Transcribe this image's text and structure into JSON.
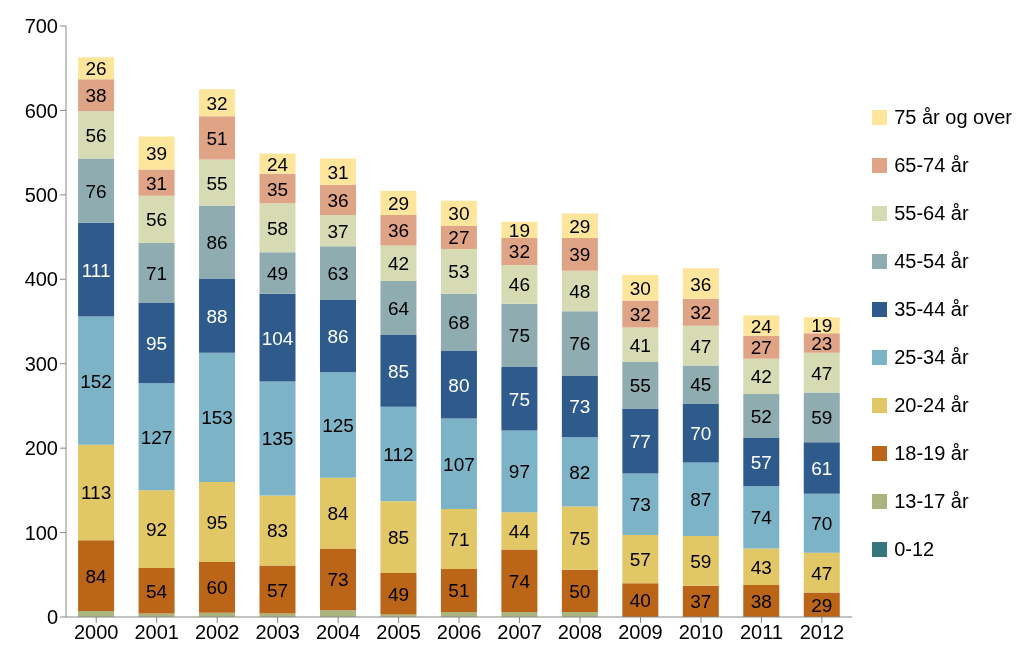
{
  "chart_data": {
    "type": "bar",
    "stacked": true,
    "categories": [
      "2000",
      "2001",
      "2002",
      "2003",
      "2004",
      "2005",
      "2006",
      "2007",
      "2008",
      "2009",
      "2010",
      "2011",
      "2012"
    ],
    "ylim": [
      0,
      700
    ],
    "yticks": [
      0,
      100,
      200,
      300,
      400,
      500,
      600,
      700
    ],
    "grid": false,
    "legend": "right",
    "series": [
      {
        "name": "0-12",
        "color": "#37767b",
        "values": [
          0,
          0,
          0,
          0,
          0,
          0,
          0,
          0,
          0,
          0,
          0,
          0,
          0
        ],
        "value_labels": [
          null,
          null,
          null,
          null,
          null,
          null,
          null,
          null,
          null,
          null,
          null,
          null,
          null
        ]
      },
      {
        "name": "13-17 år",
        "color": "#abb580",
        "values": [
          7,
          4,
          5,
          4,
          8,
          3,
          6,
          6,
          6,
          null,
          null,
          null,
          null
        ],
        "value_labels": [
          null,
          null,
          null,
          null,
          null,
          null,
          null,
          null,
          null,
          null,
          null,
          null,
          null
        ]
      },
      {
        "name": "18-19 år",
        "color": "#bb6518",
        "values": [
          84,
          54,
          60,
          57,
          73,
          49,
          51,
          74,
          50,
          40,
          37,
          38,
          29
        ],
        "value_labels": [
          "84",
          "54",
          "60",
          "57",
          "73",
          "49",
          "51",
          "74",
          "50",
          "40",
          "37",
          "38",
          "29"
        ]
      },
      {
        "name": "20-24 år",
        "color": "#e2c766",
        "values": [
          113,
          92,
          95,
          83,
          84,
          85,
          71,
          44,
          75,
          57,
          59,
          43,
          47
        ],
        "value_labels": [
          "113",
          "92",
          "95",
          "83",
          "84",
          "85",
          "71",
          "44",
          "75",
          "57",
          "59",
          "43",
          "47"
        ]
      },
      {
        "name": "25-34 år",
        "color": "#7db3c6",
        "values": [
          152,
          127,
          153,
          135,
          125,
          112,
          107,
          97,
          82,
          73,
          87,
          74,
          70
        ],
        "value_labels": [
          "152",
          "127",
          "153",
          "135",
          "125",
          "112",
          "107",
          "97",
          "82",
          "73",
          "87",
          "74",
          "70"
        ]
      },
      {
        "name": "35-44 år",
        "color": "#2e5a8c",
        "values": [
          111,
          95,
          88,
          104,
          86,
          85,
          80,
          75,
          73,
          77,
          70,
          57,
          61
        ],
        "value_labels": [
          "111",
          "95",
          "88",
          "104",
          "86",
          "85",
          "80",
          "75",
          "73",
          "77",
          "70",
          "57",
          "61"
        ]
      },
      {
        "name": "45-54 år",
        "color": "#8fadb1",
        "values": [
          76,
          71,
          86,
          49,
          63,
          64,
          68,
          75,
          76,
          55,
          45,
          52,
          59
        ],
        "value_labels": [
          "76",
          "71",
          "86",
          "49",
          "63",
          "64",
          "68",
          "75",
          "76",
          "55",
          "45",
          "52",
          "59"
        ]
      },
      {
        "name": "55-64 år",
        "color": "#d6dbb4",
        "values": [
          56,
          56,
          55,
          58,
          37,
          42,
          53,
          46,
          48,
          41,
          47,
          42,
          47
        ],
        "value_labels": [
          "56",
          "56",
          "55",
          "58",
          "37",
          "42",
          "53",
          "46",
          "48",
          "41",
          "47",
          "42",
          "47"
        ]
      },
      {
        "name": "65-74 år",
        "color": "#dfa386",
        "values": [
          38,
          31,
          51,
          35,
          36,
          36,
          27,
          32,
          39,
          32,
          32,
          27,
          23
        ],
        "value_labels": [
          "38",
          "31",
          "51",
          "35",
          "36",
          "36",
          "27",
          "32",
          "39",
          "32",
          "32",
          "27",
          "23"
        ]
      },
      {
        "name": "75 år og over",
        "color": "#fde59b",
        "values": [
          26,
          39,
          32,
          24,
          31,
          29,
          30,
          19,
          29,
          30,
          36,
          24,
          19
        ],
        "value_labels": [
          "26",
          "39",
          "32",
          "24",
          "31",
          "29",
          "30",
          "19",
          "29",
          "30",
          "36",
          "24",
          "19"
        ]
      }
    ]
  }
}
